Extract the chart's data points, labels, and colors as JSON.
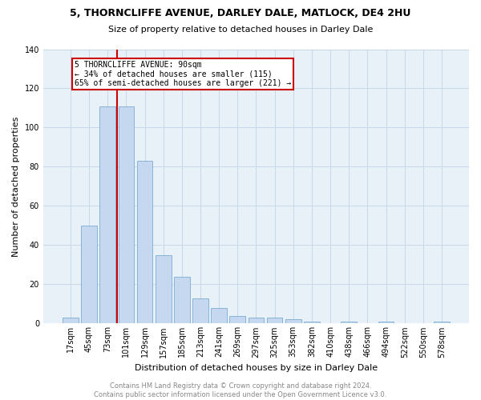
{
  "title": "5, THORNCLIFFE AVENUE, DARLEY DALE, MATLOCK, DE4 2HU",
  "subtitle": "Size of property relative to detached houses in Darley Dale",
  "xlabel": "Distribution of detached houses by size in Darley Dale",
  "ylabel": "Number of detached properties",
  "bin_labels": [
    "17sqm",
    "45sqm",
    "73sqm",
    "101sqm",
    "129sqm",
    "157sqm",
    "185sqm",
    "213sqm",
    "241sqm",
    "269sqm",
    "297sqm",
    "325sqm",
    "353sqm",
    "382sqm",
    "410sqm",
    "438sqm",
    "466sqm",
    "494sqm",
    "522sqm",
    "550sqm",
    "578sqm"
  ],
  "bar_heights": [
    3,
    50,
    111,
    111,
    83,
    35,
    24,
    13,
    8,
    4,
    3,
    3,
    2,
    1,
    0,
    1,
    0,
    1,
    0,
    0,
    1
  ],
  "annotation_text": "5 THORNCLIFFE AVENUE: 90sqm\n← 34% of detached houses are smaller (115)\n65% of semi-detached houses are larger (221) →",
  "bar_color": "#c5d8ef",
  "bar_edge_color": "#7aadd4",
  "vline_color": "#cc0000",
  "annotation_box_edge_color": "#cc0000",
  "grid_color": "#c8d8e8",
  "background_color": "#e8f0f8",
  "footer_text": "Contains HM Land Registry data © Crown copyright and database right 2024.\nContains public sector information licensed under the Open Government Licence v3.0.",
  "ylim": [
    0,
    140
  ],
  "yticks": [
    0,
    20,
    40,
    60,
    80,
    100,
    120,
    140
  ],
  "vline_x": 2.5,
  "title_fontsize": 9,
  "subtitle_fontsize": 8,
  "ylabel_fontsize": 8,
  "xlabel_fontsize": 8,
  "tick_fontsize": 7,
  "footer_fontsize": 6,
  "annotation_fontsize": 7
}
